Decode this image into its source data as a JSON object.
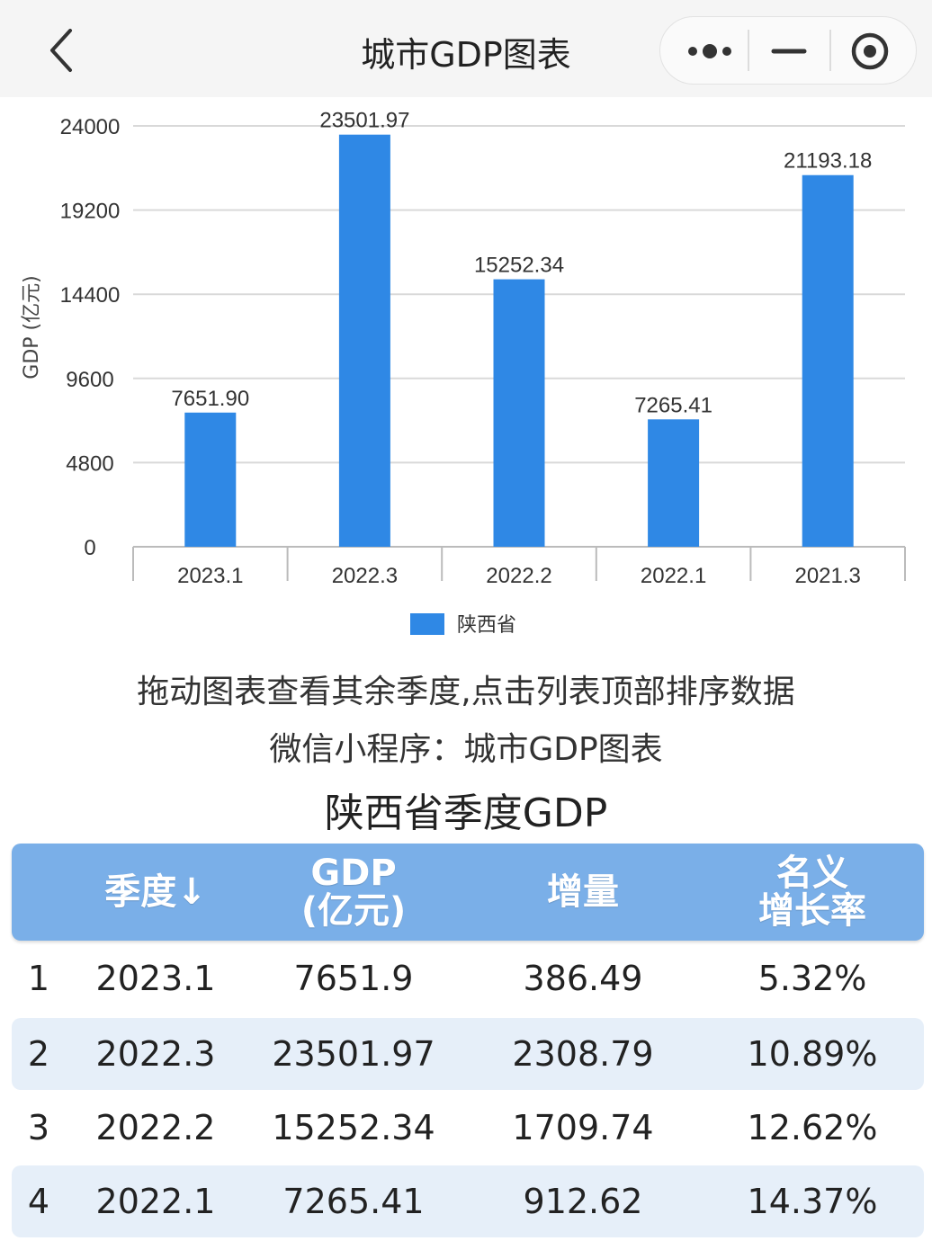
{
  "app": {
    "title": "城市GDP图表",
    "icons": [
      "back-chevron-icon",
      "more-dots-icon",
      "minimize-icon",
      "close-target-icon"
    ]
  },
  "chart_data": {
    "type": "bar",
    "categories": [
      "2023.1",
      "2022.3",
      "2022.2",
      "2022.1",
      "2021.3"
    ],
    "series": [
      {
        "name": "陕西省",
        "values": [
          7651.9,
          23501.97,
          15252.34,
          7265.41,
          21193.18
        ],
        "color": "#2f88e5"
      }
    ],
    "value_labels": [
      "7651.90",
      "23501.97",
      "15252.34",
      "7265.41",
      "21193.18"
    ],
    "ylabel": "GDP (亿元)",
    "xlabel": "",
    "yticks": [
      "0",
      "4800",
      "9600",
      "14400",
      "19200",
      "24000"
    ],
    "ylim": [
      0,
      24000
    ],
    "grid": true,
    "legend_position": "bottom-center"
  },
  "hints": {
    "line1": "拖动图表查看其余季度,点击列表顶部排序数据",
    "line2": "微信小程序：城市GDP图表"
  },
  "table": {
    "title": "陕西省季度GDP",
    "headers": {
      "quarter": "季度↓",
      "gdp_line1": "GDP",
      "gdp_line2": "(亿元)",
      "increase": "增量",
      "growth_line1": "名义",
      "growth_line2": "增长率"
    },
    "rows": [
      {
        "rank": "1",
        "quarter": "2023.1",
        "gdp": "7651.9",
        "increase": "386.49",
        "growth": "5.32%"
      },
      {
        "rank": "2",
        "quarter": "2022.3",
        "gdp": "23501.97",
        "increase": "2308.79",
        "growth": "10.89%"
      },
      {
        "rank": "3",
        "quarter": "2022.2",
        "gdp": "15252.34",
        "increase": "1709.74",
        "growth": "12.62%"
      },
      {
        "rank": "4",
        "quarter": "2022.1",
        "gdp": "7265.41",
        "increase": "912.62",
        "growth": "14.37%"
      }
    ]
  }
}
